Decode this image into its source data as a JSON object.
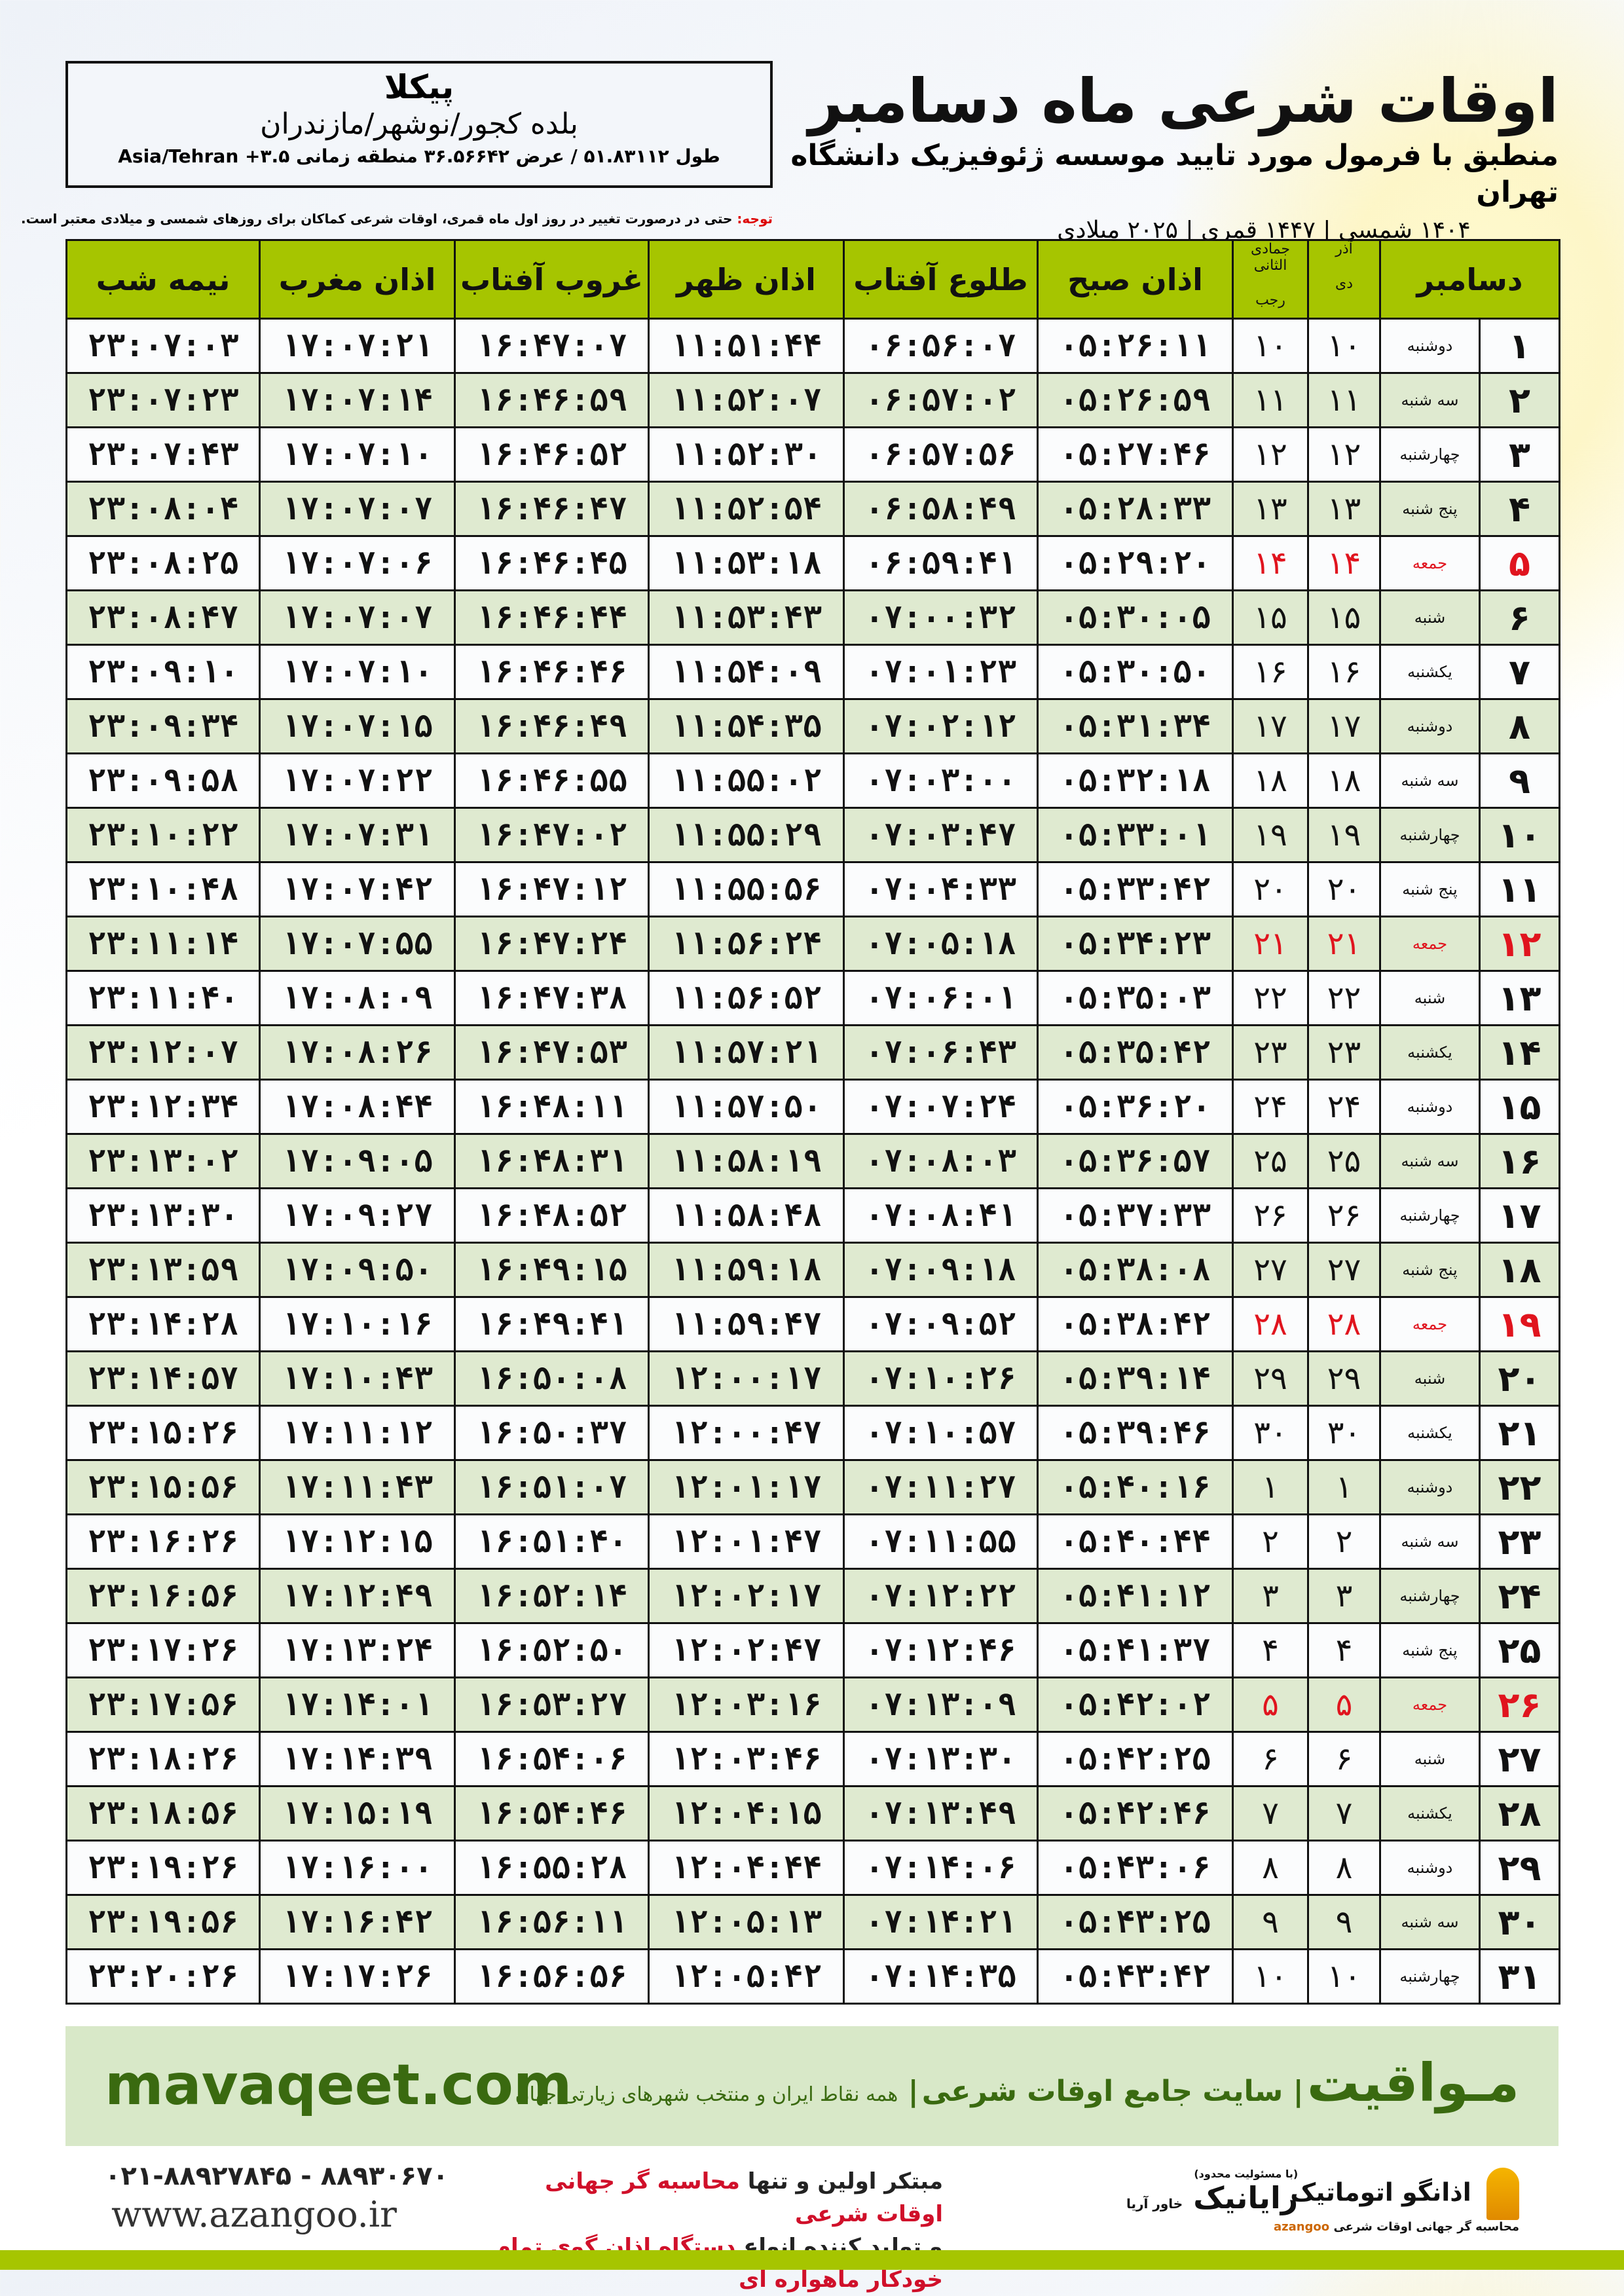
{
  "header": {
    "title": "اوقات شرعی ماه دسامبر",
    "subtitle": "منطبق با فرمول مورد تایید موسسه ژئوفیزیک دانشگاه تهران",
    "years": "۱۴۰۴ شمسی | ۱۴۴۷ قمری | ۲۰۲۵ میلادی"
  },
  "location": {
    "city": "پیکلا",
    "region": "بلده کجور/نوشهر/مازندران",
    "coords": "طول ۵۱.۸۳۱۱۲ / عرض ۳۶.۵۶۶۴۲ منطقه زمانی ۳.۵+ Asia/Tehran"
  },
  "note": {
    "label": "توجه:",
    "text": "حتی در درصورت تغییر در روز اول ماه قمری، اوقات شرعی کماکان برای روزهای شمسی و میلادی معتبر است."
  },
  "colors": {
    "header_bg": "#a6c500",
    "row_alt": "#dfead0",
    "friday": "#e0141e",
    "brand_green": "#3a6a10"
  },
  "table": {
    "headers": {
      "month": "دسامبر",
      "dey": "دی",
      "azar": "آذر",
      "rajab": "رجب",
      "jumada": "جمادی الثانی",
      "fajr": "اذان صبح",
      "sunrise": "طلوع آفتاب",
      "dhuhr": "اذان ظهر",
      "sunset": "غروب آفتاب",
      "maghrib": "اذان مغرب",
      "midnight": "نیمه شب"
    },
    "rows": [
      [
        "۱",
        "دوشنبه",
        "۱۰",
        "۱۰",
        "۰۵:۲۶:۱۱",
        "۰۶:۵۶:۰۷",
        "۱۱:۵۱:۴۴",
        "۱۶:۴۷:۰۷",
        "۱۷:۰۷:۲۱",
        "۲۳:۰۷:۰۳"
      ],
      [
        "۲",
        "سه شنبه",
        "۱۱",
        "۱۱",
        "۰۵:۲۶:۵۹",
        "۰۶:۵۷:۰۲",
        "۱۱:۵۲:۰۷",
        "۱۶:۴۶:۵۹",
        "۱۷:۰۷:۱۴",
        "۲۳:۰۷:۲۳"
      ],
      [
        "۳",
        "چهارشنبه",
        "۱۲",
        "۱۲",
        "۰۵:۲۷:۴۶",
        "۰۶:۵۷:۵۶",
        "۱۱:۵۲:۳۰",
        "۱۶:۴۶:۵۲",
        "۱۷:۰۷:۱۰",
        "۲۳:۰۷:۴۳"
      ],
      [
        "۴",
        "پنج شنبه",
        "۱۳",
        "۱۳",
        "۰۵:۲۸:۳۳",
        "۰۶:۵۸:۴۹",
        "۱۱:۵۲:۵۴",
        "۱۶:۴۶:۴۷",
        "۱۷:۰۷:۰۷",
        "۲۳:۰۸:۰۴"
      ],
      [
        "۵",
        "جمعه",
        "۱۴",
        "۱۴",
        "۰۵:۲۹:۲۰",
        "۰۶:۵۹:۴۱",
        "۱۱:۵۳:۱۸",
        "۱۶:۴۶:۴۵",
        "۱۷:۰۷:۰۶",
        "۲۳:۰۸:۲۵"
      ],
      [
        "۶",
        "شنبه",
        "۱۵",
        "۱۵",
        "۰۵:۳۰:۰۵",
        "۰۷:۰۰:۳۲",
        "۱۱:۵۳:۴۳",
        "۱۶:۴۶:۴۴",
        "۱۷:۰۷:۰۷",
        "۲۳:۰۸:۴۷"
      ],
      [
        "۷",
        "یکشنبه",
        "۱۶",
        "۱۶",
        "۰۵:۳۰:۵۰",
        "۰۷:۰۱:۲۳",
        "۱۱:۵۴:۰۹",
        "۱۶:۴۶:۴۶",
        "۱۷:۰۷:۱۰",
        "۲۳:۰۹:۱۰"
      ],
      [
        "۸",
        "دوشنبه",
        "۱۷",
        "۱۷",
        "۰۵:۳۱:۳۴",
        "۰۷:۰۲:۱۲",
        "۱۱:۵۴:۳۵",
        "۱۶:۴۶:۴۹",
        "۱۷:۰۷:۱۵",
        "۲۳:۰۹:۳۴"
      ],
      [
        "۹",
        "سه شنبه",
        "۱۸",
        "۱۸",
        "۰۵:۳۲:۱۸",
        "۰۷:۰۳:۰۰",
        "۱۱:۵۵:۰۲",
        "۱۶:۴۶:۵۵",
        "۱۷:۰۷:۲۲",
        "۲۳:۰۹:۵۸"
      ],
      [
        "۱۰",
        "چهارشنبه",
        "۱۹",
        "۱۹",
        "۰۵:۳۳:۰۱",
        "۰۷:۰۳:۴۷",
        "۱۱:۵۵:۲۹",
        "۱۶:۴۷:۰۲",
        "۱۷:۰۷:۳۱",
        "۲۳:۱۰:۲۲"
      ],
      [
        "۱۱",
        "پنج شنبه",
        "۲۰",
        "۲۰",
        "۰۵:۳۳:۴۲",
        "۰۷:۰۴:۳۳",
        "۱۱:۵۵:۵۶",
        "۱۶:۴۷:۱۲",
        "۱۷:۰۷:۴۲",
        "۲۳:۱۰:۴۸"
      ],
      [
        "۱۲",
        "جمعه",
        "۲۱",
        "۲۱",
        "۰۵:۳۴:۲۳",
        "۰۷:۰۵:۱۸",
        "۱۱:۵۶:۲۴",
        "۱۶:۴۷:۲۴",
        "۱۷:۰۷:۵۵",
        "۲۳:۱۱:۱۴"
      ],
      [
        "۱۳",
        "شنبه",
        "۲۲",
        "۲۲",
        "۰۵:۳۵:۰۳",
        "۰۷:۰۶:۰۱",
        "۱۱:۵۶:۵۲",
        "۱۶:۴۷:۳۸",
        "۱۷:۰۸:۰۹",
        "۲۳:۱۱:۴۰"
      ],
      [
        "۱۴",
        "یکشنبه",
        "۲۳",
        "۲۳",
        "۰۵:۳۵:۴۲",
        "۰۷:۰۶:۴۳",
        "۱۱:۵۷:۲۱",
        "۱۶:۴۷:۵۳",
        "۱۷:۰۸:۲۶",
        "۲۳:۱۲:۰۷"
      ],
      [
        "۱۵",
        "دوشنبه",
        "۲۴",
        "۲۴",
        "۰۵:۳۶:۲۰",
        "۰۷:۰۷:۲۴",
        "۱۱:۵۷:۵۰",
        "۱۶:۴۸:۱۱",
        "۱۷:۰۸:۴۴",
        "۲۳:۱۲:۳۴"
      ],
      [
        "۱۶",
        "سه شنبه",
        "۲۵",
        "۲۵",
        "۰۵:۳۶:۵۷",
        "۰۷:۰۸:۰۳",
        "۱۱:۵۸:۱۹",
        "۱۶:۴۸:۳۱",
        "۱۷:۰۹:۰۵",
        "۲۳:۱۳:۰۲"
      ],
      [
        "۱۷",
        "چهارشنبه",
        "۲۶",
        "۲۶",
        "۰۵:۳۷:۳۳",
        "۰۷:۰۸:۴۱",
        "۱۱:۵۸:۴۸",
        "۱۶:۴۸:۵۲",
        "۱۷:۰۹:۲۷",
        "۲۳:۱۳:۳۰"
      ],
      [
        "۱۸",
        "پنج شنبه",
        "۲۷",
        "۲۷",
        "۰۵:۳۸:۰۸",
        "۰۷:۰۹:۱۸",
        "۱۱:۵۹:۱۸",
        "۱۶:۴۹:۱۵",
        "۱۷:۰۹:۵۰",
        "۲۳:۱۳:۵۹"
      ],
      [
        "۱۹",
        "جمعه",
        "۲۸",
        "۲۸",
        "۰۵:۳۸:۴۲",
        "۰۷:۰۹:۵۲",
        "۱۱:۵۹:۴۷",
        "۱۶:۴۹:۴۱",
        "۱۷:۱۰:۱۶",
        "۲۳:۱۴:۲۸"
      ],
      [
        "۲۰",
        "شنبه",
        "۲۹",
        "۲۹",
        "۰۵:۳۹:۱۴",
        "۰۷:۱۰:۲۶",
        "۱۲:۰۰:۱۷",
        "۱۶:۵۰:۰۸",
        "۱۷:۱۰:۴۳",
        "۲۳:۱۴:۵۷"
      ],
      [
        "۲۱",
        "یکشنبه",
        "۳۰",
        "۳۰",
        "۰۵:۳۹:۴۶",
        "۰۷:۱۰:۵۷",
        "۱۲:۰۰:۴۷",
        "۱۶:۵۰:۳۷",
        "۱۷:۱۱:۱۲",
        "۲۳:۱۵:۲۶"
      ],
      [
        "۲۲",
        "دوشنبه",
        "۱",
        "۱",
        "۰۵:۴۰:۱۶",
        "۰۷:۱۱:۲۷",
        "۱۲:۰۱:۱۷",
        "۱۶:۵۱:۰۷",
        "۱۷:۱۱:۴۳",
        "۲۳:۱۵:۵۶"
      ],
      [
        "۲۳",
        "سه شنبه",
        "۲",
        "۲",
        "۰۵:۴۰:۴۴",
        "۰۷:۱۱:۵۵",
        "۱۲:۰۱:۴۷",
        "۱۶:۵۱:۴۰",
        "۱۷:۱۲:۱۵",
        "۲۳:۱۶:۲۶"
      ],
      [
        "۲۴",
        "چهارشنبه",
        "۳",
        "۳",
        "۰۵:۴۱:۱۲",
        "۰۷:۱۲:۲۲",
        "۱۲:۰۲:۱۷",
        "۱۶:۵۲:۱۴",
        "۱۷:۱۲:۴۹",
        "۲۳:۱۶:۵۶"
      ],
      [
        "۲۵",
        "پنج شنبه",
        "۴",
        "۴",
        "۰۵:۴۱:۳۷",
        "۰۷:۱۲:۴۶",
        "۱۲:۰۲:۴۷",
        "۱۶:۵۲:۵۰",
        "۱۷:۱۳:۲۴",
        "۲۳:۱۷:۲۶"
      ],
      [
        "۲۶",
        "جمعه",
        "۵",
        "۵",
        "۰۵:۴۲:۰۲",
        "۰۷:۱۳:۰۹",
        "۱۲:۰۳:۱۶",
        "۱۶:۵۳:۲۷",
        "۱۷:۱۴:۰۱",
        "۲۳:۱۷:۵۶"
      ],
      [
        "۲۷",
        "شنبه",
        "۶",
        "۶",
        "۰۵:۴۲:۲۵",
        "۰۷:۱۳:۳۰",
        "۱۲:۰۳:۴۶",
        "۱۶:۵۴:۰۶",
        "۱۷:۱۴:۳۹",
        "۲۳:۱۸:۲۶"
      ],
      [
        "۲۸",
        "یکشنبه",
        "۷",
        "۷",
        "۰۵:۴۲:۴۶",
        "۰۷:۱۳:۴۹",
        "۱۲:۰۴:۱۵",
        "۱۶:۵۴:۴۶",
        "۱۷:۱۵:۱۹",
        "۲۳:۱۸:۵۶"
      ],
      [
        "۲۹",
        "دوشنبه",
        "۸",
        "۸",
        "۰۵:۴۳:۰۶",
        "۰۷:۱۴:۰۶",
        "۱۲:۰۴:۴۴",
        "۱۶:۵۵:۲۸",
        "۱۷:۱۶:۰۰",
        "۲۳:۱۹:۲۶"
      ],
      [
        "۳۰",
        "سه شنبه",
        "۹",
        "۹",
        "۰۵:۴۳:۲۵",
        "۰۷:۱۴:۲۱",
        "۱۲:۰۵:۱۳",
        "۱۶:۵۶:۱۱",
        "۱۷:۱۶:۴۲",
        "۲۳:۱۹:۵۶"
      ],
      [
        "۳۱",
        "چهارشنبه",
        "۱۰",
        "۱۰",
        "۰۵:۴۳:۴۲",
        "۰۷:۱۴:۳۵",
        "۱۲:۰۵:۴۲",
        "۱۶:۵۶:۵۶",
        "۱۷:۱۷:۲۶",
        "۲۳:۲۰:۲۶"
      ]
    ]
  },
  "banner": {
    "site": "mavaqeet.com",
    "brand": "مـواقیت",
    "slogan1": "سایت جامع اوقات شرعی",
    "slogan2": "همه نقاط ایران و منتخب شهرهای زیارتی جهان"
  },
  "footer": {
    "phone": "۰۲۱-۸۸۹۲۷۸۴۵ - ۸۸۹۳۰۶۷۰",
    "web": "www.azangoo.ir",
    "line1_a": "مبتکر اولین و تنها",
    "line1_b": "محاسبه گر جهانی اوقات شرعی",
    "line2_a": "و تولید کننده انواع",
    "line2_b": "دستگاه اذان گوی تمام خودکار ماهواره ای",
    "logo_rayanik": "رایانیک",
    "logo_rayanik_sub": "خاور آریا",
    "logo_rayanik_note": "(با مسئولیت محدود)",
    "logo_azangoo": "اذانگو اتوماتیک",
    "logo_azangoo_sub": "محاسبه گر جهانی اوقات شرعی",
    "logo_azangoo_en": "azangoo"
  }
}
